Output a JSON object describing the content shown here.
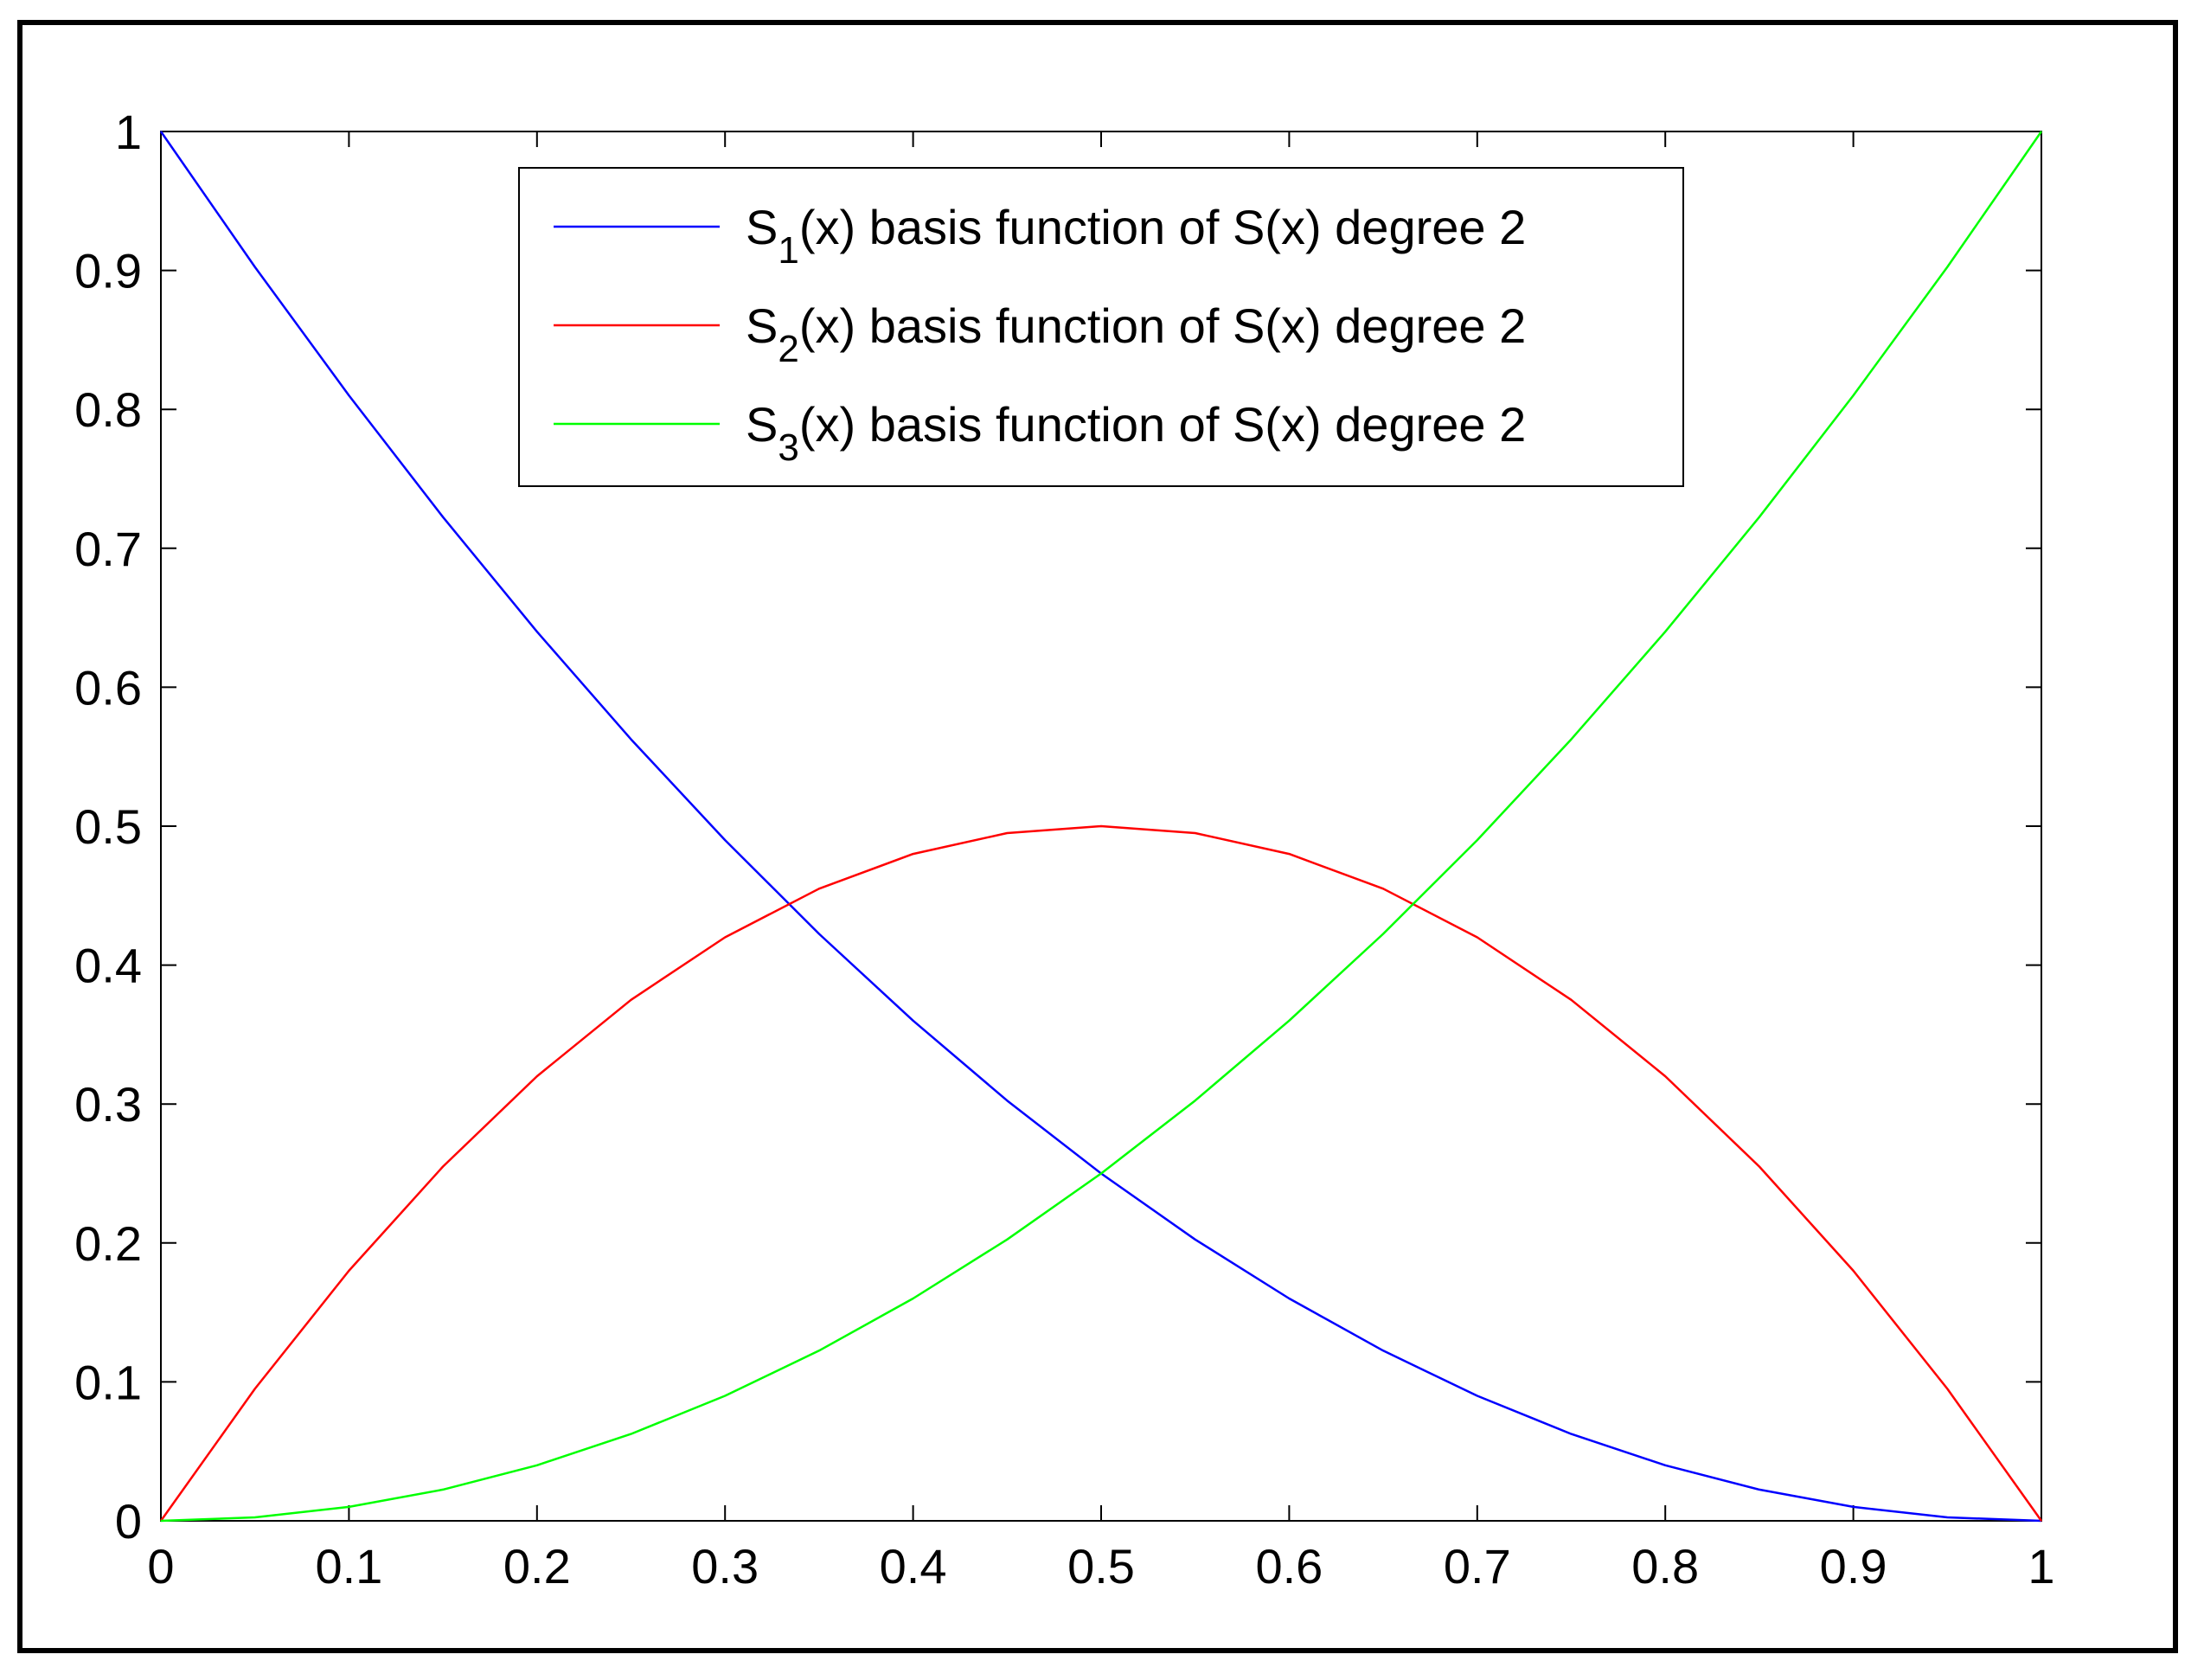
{
  "chart_data": {
    "type": "line",
    "title": "",
    "xlabel": "",
    "ylabel": "",
    "xlim": [
      0,
      1
    ],
    "ylim": [
      0,
      1
    ],
    "xticks": [
      "0",
      "0.1",
      "0.2",
      "0.3",
      "0.4",
      "0.5",
      "0.6",
      "0.7",
      "0.8",
      "0.9",
      "1"
    ],
    "yticks": [
      "0",
      "0.1",
      "0.2",
      "0.3",
      "0.4",
      "0.5",
      "0.6",
      "0.7",
      "0.8",
      "0.9",
      "1"
    ],
    "grid": false,
    "legend_position": "top-center",
    "x": [
      0,
      0.05,
      0.1,
      0.15,
      0.2,
      0.25,
      0.3,
      0.35,
      0.4,
      0.45,
      0.5,
      0.55,
      0.6,
      0.65,
      0.7,
      0.75,
      0.8,
      0.85,
      0.9,
      0.95,
      1
    ],
    "series": [
      {
        "name_prefix": "S",
        "name_sub": "1",
        "name_suffix": "(x) basis function of S(x) degree 2",
        "color": "#0000ff",
        "values": [
          1,
          0.9025,
          0.81,
          0.7225,
          0.64,
          0.5625,
          0.49,
          0.4225,
          0.36,
          0.3025,
          0.25,
          0.2025,
          0.16,
          0.1225,
          0.09,
          0.0625,
          0.04,
          0.0225,
          0.01,
          0.0025,
          0
        ]
      },
      {
        "name_prefix": "S",
        "name_sub": "2",
        "name_suffix": "(x) basis function of S(x) degree 2",
        "color": "#ff0000",
        "values": [
          0,
          0.095,
          0.18,
          0.255,
          0.32,
          0.375,
          0.42,
          0.455,
          0.48,
          0.495,
          0.5,
          0.495,
          0.48,
          0.455,
          0.42,
          0.375,
          0.32,
          0.255,
          0.18,
          0.095,
          0
        ]
      },
      {
        "name_prefix": "S",
        "name_sub": "3",
        "name_suffix": "(x) basis function of S(x) degree 2",
        "color": "#00ff00",
        "values": [
          0,
          0.0025,
          0.01,
          0.0225,
          0.04,
          0.0625,
          0.09,
          0.1225,
          0.16,
          0.2025,
          0.25,
          0.3025,
          0.36,
          0.4225,
          0.49,
          0.5625,
          0.64,
          0.7225,
          0.81,
          0.9025,
          1
        ]
      }
    ]
  }
}
